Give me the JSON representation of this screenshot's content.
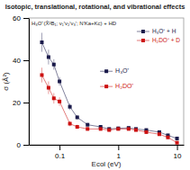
{
  "chart_data": {
    "type": "line",
    "title": "Isotopic, translational, rotational, and vibrational effects",
    "xlabel": "Ecol (eV)",
    "ylabel": "σ (Å²)",
    "log": "x",
    "grid": false,
    "legend": "upper right",
    "marker": "square",
    "line_style": "solid",
    "xlim": [
      0.03,
      13
    ],
    "ylim": [
      0,
      60
    ],
    "xticks": [
      0.1,
      1,
      10
    ],
    "yticks": [
      0,
      20,
      40,
      60
    ],
    "x": [
      0.05,
      0.065,
      0.08,
      0.1,
      0.15,
      0.2,
      0.3,
      0.5,
      0.7,
      1.0,
      1.5,
      2.0,
      3.0,
      5.0,
      7.0,
      10.0
    ],
    "series": [
      {
        "name": "H₃O⁺ + H",
        "color": "#1a1a4a",
        "values": [
          48.5,
          41.5,
          38.0,
          30.0,
          18.0,
          13.0,
          9.5,
          8.5,
          7.5,
          7.8,
          8.0,
          7.5,
          7.0,
          6.0,
          4.5,
          3.0
        ],
        "errors": [
          4.5,
          3.5,
          2.5,
          2.0,
          1.5,
          1.0,
          0.8,
          0.7,
          0.6,
          0.6,
          0.6,
          0.5,
          0.5,
          0.4,
          0.4,
          0.3
        ]
      },
      {
        "name": "H₂DO⁺ + D",
        "color": "#cc1111",
        "values": [
          33.0,
          27.0,
          22.0,
          20.5,
          10.0,
          8.5,
          7.5,
          7.5,
          7.0,
          7.5,
          7.5,
          7.0,
          6.0,
          5.0,
          3.5,
          1.0
        ],
        "errors": [
          3.5,
          3.0,
          2.5,
          2.0,
          1.2,
          1.0,
          0.8,
          0.7,
          0.6,
          0.6,
          0.6,
          0.5,
          0.5,
          0.4,
          0.4,
          0.3
        ]
      }
    ],
    "annotations": [
      "H₃O⁺(X̃²B₁; v₁′v₂′v₃′; N′Ka+Kc) + HD",
      "H₃O⁺",
      "H₂DO⁺"
    ]
  }
}
